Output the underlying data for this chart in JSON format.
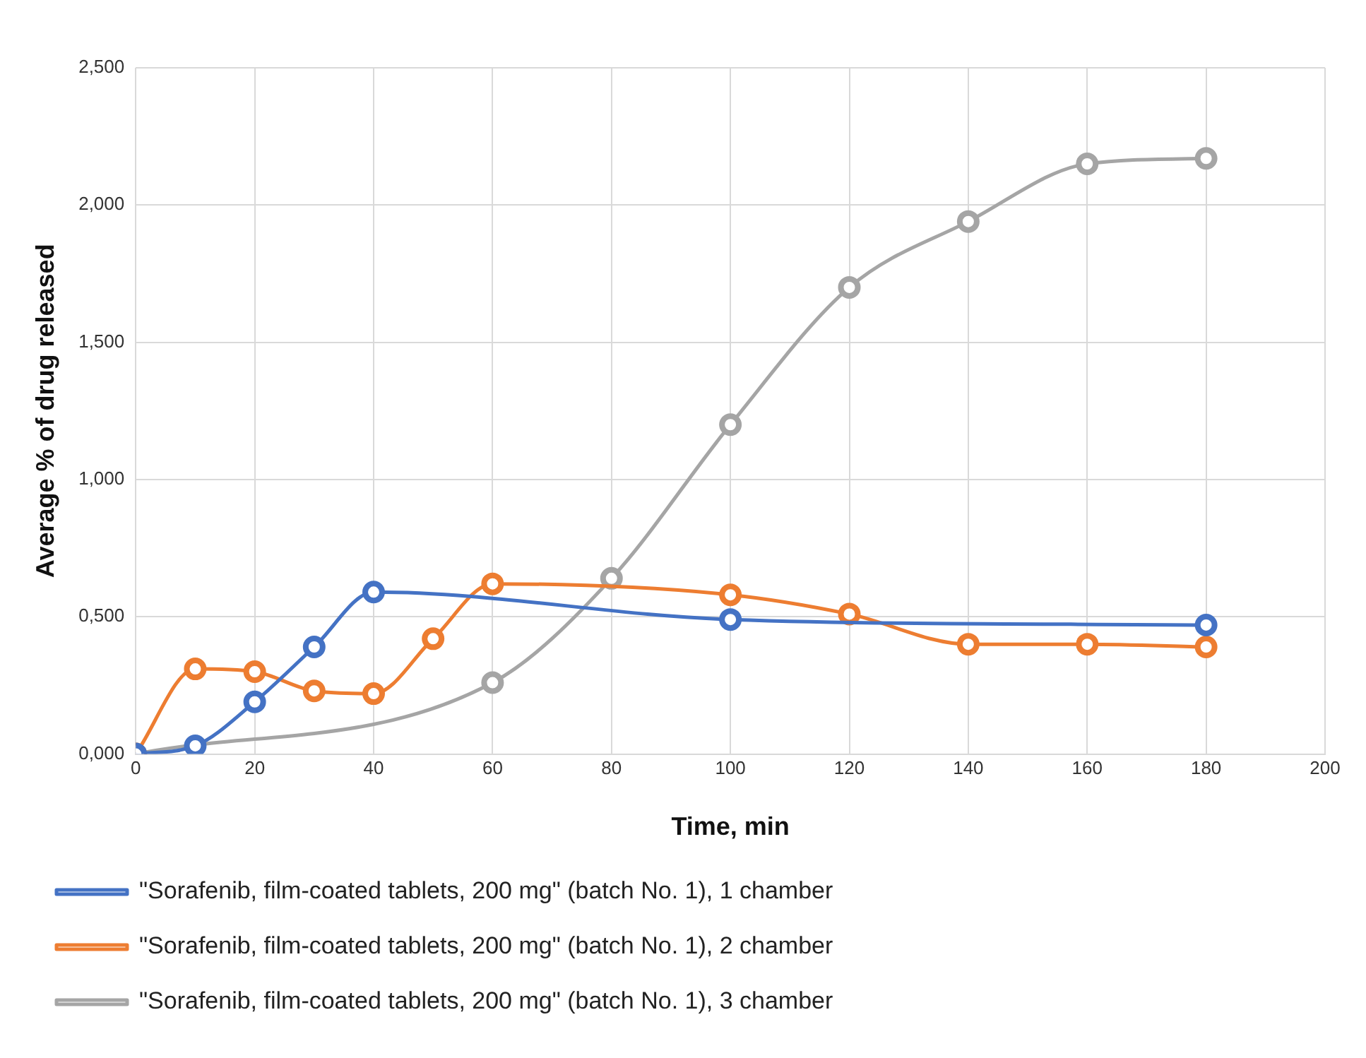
{
  "chart_data": {
    "type": "line",
    "xlabel": "Time, min",
    "ylabel": "Average % of drug released",
    "xlim": [
      0,
      200
    ],
    "xticks": [
      0,
      20,
      40,
      60,
      80,
      100,
      120,
      140,
      160,
      180,
      200
    ],
    "ylim": [
      0,
      2.5
    ],
    "yticks": [
      {
        "value": 0,
        "label": "0,000"
      },
      {
        "value": 0.5,
        "label": "0,500"
      },
      {
        "value": 1,
        "label": "1,000"
      },
      {
        "value": 1.5,
        "label": "1,500"
      },
      {
        "value": 2,
        "label": "2,000"
      },
      {
        "value": 2.5,
        "label": "2,500"
      }
    ],
    "grid": true,
    "legend": "bottom",
    "marker": "circle",
    "line_style": "solid",
    "series": [
      {
        "name": "\"Sorafenib, film-coated tablets, 200 mg\" (batch No. 1), 1 chamber",
        "color": "#4472c4",
        "x": [
          0,
          10,
          20,
          30,
          40,
          100,
          180
        ],
        "values": [
          0,
          0.03,
          0.19,
          0.39,
          0.59,
          0.49,
          0.47
        ]
      },
      {
        "name": "\"Sorafenib, film-coated tablets, 200 mg\" (batch No. 1), 2 chamber",
        "color": "#ed7d31",
        "x": [
          0,
          10,
          20,
          30,
          40,
          50,
          60,
          100,
          120,
          140,
          160,
          180
        ],
        "values": [
          0,
          0.31,
          0.3,
          0.23,
          0.22,
          0.42,
          0.62,
          0.58,
          0.51,
          0.4,
          0.4,
          0.39
        ]
      },
      {
        "name": "\"Sorafenib, film-coated tablets, 200 mg\" (batch No. 1), 3 chamber",
        "color": "#a5a5a5",
        "x": [
          0,
          60,
          80,
          100,
          120,
          140,
          160,
          180
        ],
        "values": [
          0,
          0.26,
          0.64,
          1.2,
          1.7,
          1.94,
          2.15,
          2.17
        ]
      }
    ]
  }
}
